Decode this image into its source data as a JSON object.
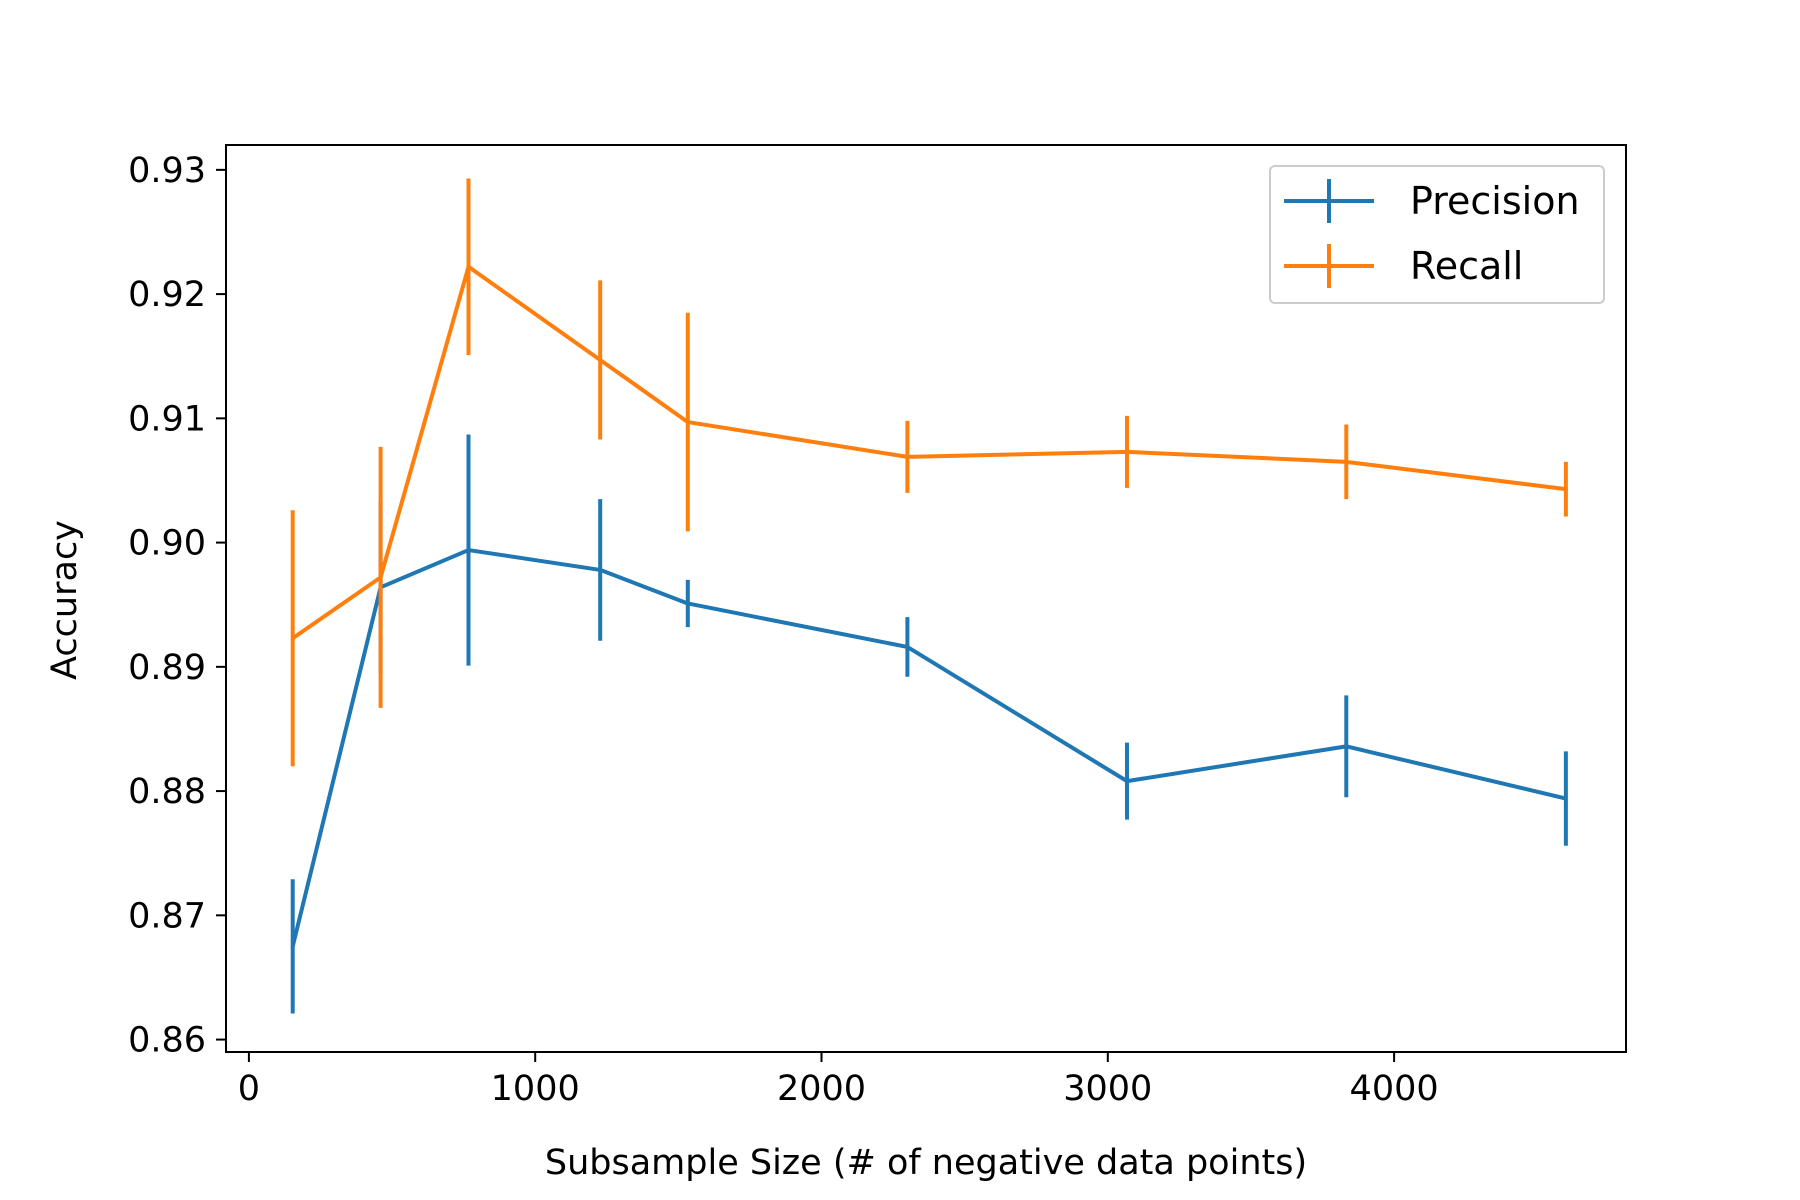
{
  "chart_data": {
    "type": "line",
    "title": "",
    "xlabel": "Subsample Size (# of negative data points)",
    "ylabel": "Accuracy",
    "xlim": [
      -80,
      4810
    ],
    "ylim": [
      0.859,
      0.932
    ],
    "xticks": [
      0,
      1000,
      2000,
      3000,
      4000
    ],
    "xtick_labels": [
      "0",
      "1000",
      "2000",
      "3000",
      "4000"
    ],
    "yticks": [
      0.86,
      0.87,
      0.88,
      0.89,
      0.9,
      0.91,
      0.92,
      0.93
    ],
    "ytick_labels": [
      "0.86",
      "0.87",
      "0.88",
      "0.89",
      "0.90",
      "0.91",
      "0.92",
      "0.93"
    ],
    "grid": false,
    "legend_position": "top-right",
    "x": [
      153,
      460,
      767,
      1227,
      1533,
      2300,
      3067,
      3833,
      4600
    ],
    "series": [
      {
        "name": "Precision",
        "color": "#1f77b4",
        "values": [
          0.8675,
          0.8964,
          0.8994,
          0.8978,
          0.8951,
          0.8916,
          0.8808,
          0.8836,
          0.8794
        ],
        "errors": [
          0.0054,
          0.0069,
          0.0093,
          0.0057,
          0.0019,
          0.0024,
          0.0031,
          0.0041,
          0.0038
        ]
      },
      {
        "name": "Recall",
        "color": "#ff7f0e",
        "values": [
          0.8923,
          0.8972,
          0.9222,
          0.9147,
          0.9097,
          0.9069,
          0.9073,
          0.9065,
          0.9043
        ],
        "errors": [
          0.0103,
          0.0105,
          0.0071,
          0.0064,
          0.0088,
          0.0029,
          0.0029,
          0.003,
          0.0022
        ]
      }
    ]
  }
}
